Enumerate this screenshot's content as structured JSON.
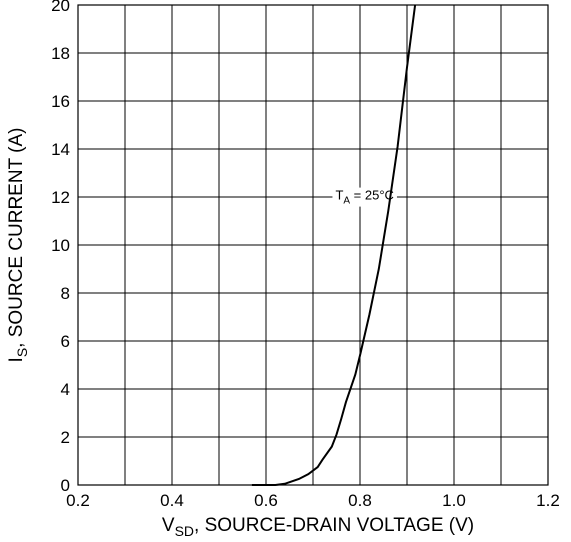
{
  "chart_data": {
    "type": "line",
    "title": "",
    "xlabel": {
      "main": "V",
      "sub": "SD",
      "rest": ", SOURCE-DRAIN VOLTAGE (V)"
    },
    "ylabel": {
      "main": "I",
      "sub": "S",
      "rest": ", SOURCE CURRENT (A)"
    },
    "xlim": [
      0.2,
      1.2
    ],
    "ylim": [
      0,
      20
    ],
    "xticks": [
      "0.2",
      "0.4",
      "0.6",
      "0.8",
      "1.0",
      "1.2"
    ],
    "yticks": [
      "0",
      "2",
      "4",
      "6",
      "8",
      "10",
      "12",
      "14",
      "16",
      "18",
      "20"
    ],
    "grid": true,
    "annotation": {
      "main": "T",
      "sub": "A",
      "rest": " = 25°C",
      "x": 0.81,
      "y": 12.1
    },
    "series": [
      {
        "x": [
          0.57,
          0.62,
          0.64,
          0.67,
          0.69,
          0.71,
          0.72,
          0.74,
          0.75,
          0.76,
          0.77,
          0.79,
          0.8,
          0.82,
          0.84,
          0.86,
          0.88,
          0.9,
          0.92
        ],
        "y": [
          0,
          0,
          0.05,
          0.25,
          0.45,
          0.75,
          1.05,
          1.6,
          2.1,
          2.75,
          3.45,
          4.6,
          5.4,
          7.1,
          9.0,
          11.4,
          14.1,
          17.4,
          20.4
        ]
      }
    ]
  }
}
